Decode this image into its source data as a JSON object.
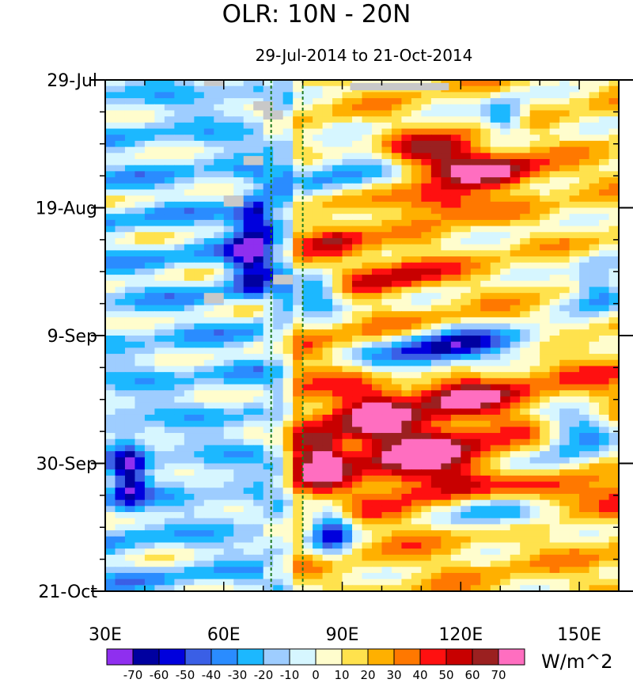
{
  "chart_data": {
    "type": "heatmap",
    "title": "OLR: 10N - 20N",
    "subtitle": "29-Jul-2014 to 21-Oct-2014",
    "xlim": [
      30,
      160
    ],
    "xticks": [
      {
        "value": 30,
        "label": "30E"
      },
      {
        "value": 60,
        "label": "60E"
      },
      {
        "value": 90,
        "label": "90E"
      },
      {
        "value": 120,
        "label": "120E"
      },
      {
        "value": 150,
        "label": "150E"
      }
    ],
    "ylim_days": [
      0,
      84
    ],
    "yticks": [
      {
        "day": 0,
        "label": "29-Jul"
      },
      {
        "day": 21,
        "label": "19-Aug"
      },
      {
        "day": 42,
        "label": "9-Sep"
      },
      {
        "day": 63,
        "label": "30-Sep"
      },
      {
        "day": 84,
        "label": "21-Oct"
      }
    ],
    "reference_lines_lon": [
      72,
      80
    ],
    "reference_line_color": "#1f7a1f",
    "missing_color": "#c8c8c8",
    "colorbar": {
      "units": "W/m^2",
      "levels": [
        -70,
        -60,
        -50,
        -40,
        -30,
        -20,
        -10,
        0,
        10,
        20,
        30,
        40,
        50,
        60,
        70
      ],
      "colors": [
        "#8f2fef",
        "#0000a0",
        "#0000dd",
        "#3a5fe6",
        "#2a8cff",
        "#1cb8ff",
        "#9ecdff",
        "#d6f6ff",
        "#fffdcd",
        "#ffe24d",
        "#ffb000",
        "#ff7800",
        "#ff1010",
        "#c80000",
        "#9b2020",
        "#ff6ec0"
      ]
    }
  }
}
